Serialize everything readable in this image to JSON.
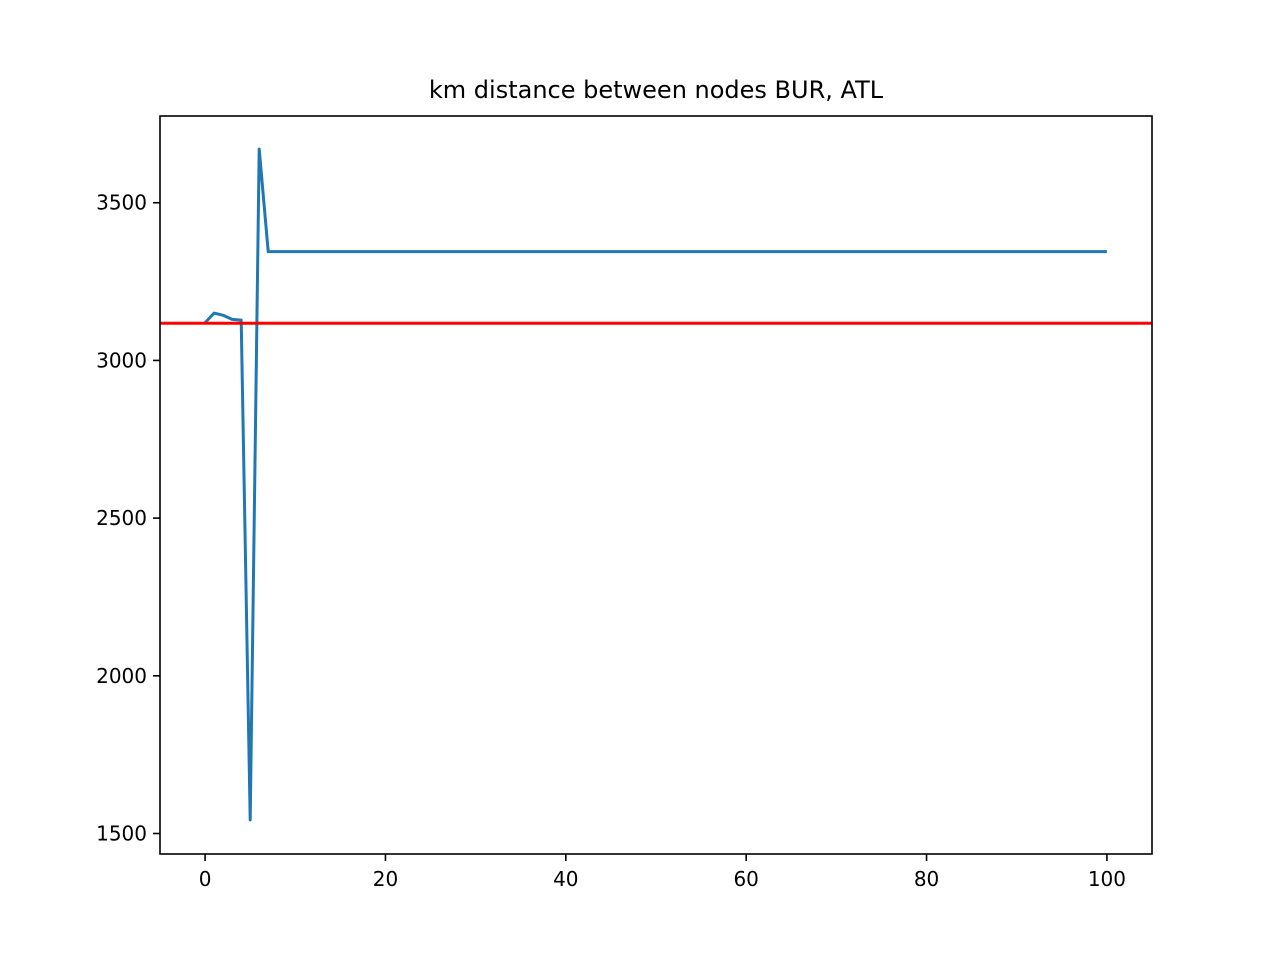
{
  "chart_data": {
    "type": "line",
    "title": "km distance between nodes BUR, ATL",
    "xlabel": "",
    "ylabel": "",
    "xlim": [
      -5,
      105
    ],
    "ylim": [
      1435,
      3775
    ],
    "xticks": [
      0,
      20,
      40,
      60,
      80,
      100
    ],
    "yticks": [
      1500,
      2000,
      2500,
      3000,
      3500
    ],
    "grid": false,
    "series": [
      {
        "color": "#1f77b4",
        "points": [
          [
            0,
            3120
          ],
          [
            1,
            3150
          ],
          [
            2,
            3143
          ],
          [
            3,
            3130
          ],
          [
            4,
            3128
          ],
          [
            5,
            1543
          ],
          [
            6,
            3670
          ],
          [
            7,
            3345
          ],
          [
            100,
            3345
          ]
        ]
      }
    ],
    "hlines": [
      {
        "y": 3118,
        "color": "#ff0000"
      }
    ]
  }
}
